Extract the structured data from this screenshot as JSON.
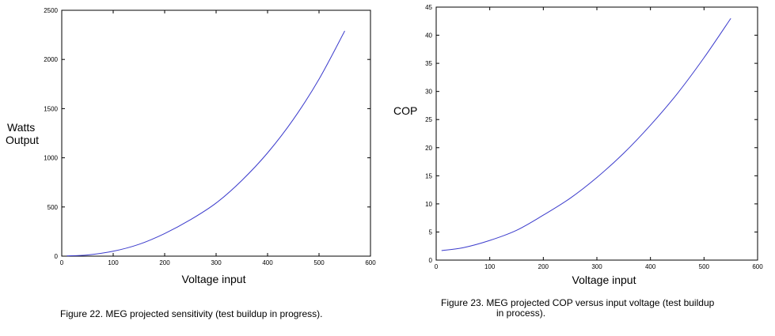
{
  "chart_data": [
    {
      "type": "line",
      "title": "",
      "xlabel": "Voltage input",
      "ylabel": [
        "Watts",
        "Output"
      ],
      "xlim": [
        0,
        600
      ],
      "ylim": [
        0,
        2500
      ],
      "xticks": [
        "0",
        "100",
        "200",
        "300",
        "400",
        "500",
        "600"
      ],
      "yticks": [
        "0",
        "500",
        "1000",
        "1500",
        "2000",
        "2500"
      ],
      "grid": false,
      "line_color": "#3b3bcc",
      "series": [
        {
          "x": [
            10,
            50,
            100,
            150,
            200,
            250,
            300,
            350,
            400,
            450,
            500,
            550
          ],
          "values": [
            3,
            12,
            50,
            120,
            230,
            370,
            540,
            770,
            1050,
            1390,
            1800,
            2290
          ]
        }
      ]
    },
    {
      "type": "line",
      "title": "",
      "xlabel": "Voltage input",
      "ylabel": "COP",
      "xlim": [
        0,
        600
      ],
      "ylim": [
        0,
        45
      ],
      "xticks": [
        "0",
        "100",
        "200",
        "300",
        "400",
        "500",
        "600"
      ],
      "yticks": [
        "0",
        "5",
        "10",
        "15",
        "20",
        "25",
        "30",
        "35",
        "40",
        "45"
      ],
      "grid": false,
      "line_color": "#3b3bcc",
      "series": [
        {
          "x": [
            10,
            50,
            100,
            150,
            200,
            250,
            300,
            350,
            400,
            450,
            500,
            550
          ],
          "values": [
            1.7,
            2.2,
            3.5,
            5.3,
            8.0,
            11.0,
            14.7,
            19.0,
            24.0,
            29.6,
            36.0,
            43.0
          ]
        }
      ]
    }
  ],
  "captions": {
    "left": "Figure 22.  MEG projected sensitivity (test buildup in progress).",
    "right_line1": "Figure 23.  MEG projected COP versus input voltage (test buildup",
    "right_line2": "in process)."
  }
}
